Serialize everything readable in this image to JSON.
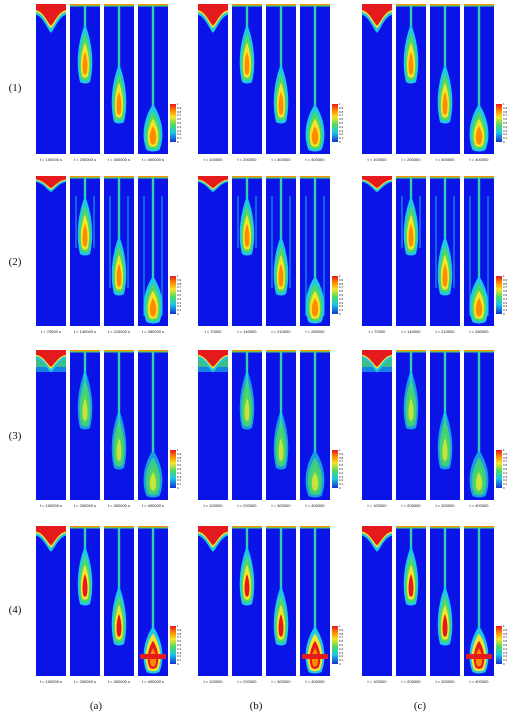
{
  "figure": {
    "row_labels": [
      "(1)",
      "(2)",
      "(3)",
      "(4)"
    ],
    "column_labels": [
      "(a)",
      "(b)",
      "(c)"
    ],
    "colorbar_ticks": [
      "1",
      "0.9",
      "0.8",
      "0.7",
      "0.6",
      "0.5",
      "0.4",
      "0.3",
      "0.2",
      "0.1",
      "0"
    ],
    "time_labels": {
      "r1": {
        "a": [
          "t = 100000 s",
          "t = 200000 s",
          "t = 300000 s",
          "t = 400000 s"
        ],
        "b": [
          "t = 100000",
          "t = 200000",
          "t = 300000",
          "t = 400000"
        ],
        "c": [
          "t = 100000",
          "t = 200000",
          "t = 300000",
          "t = 400000"
        ]
      },
      "r2": {
        "a": [
          "t = 70000 s",
          "t = 140000 s",
          "t = 210000 s",
          "t = 280000 s"
        ],
        "b": [
          "t = 70000",
          "t = 140000",
          "t = 210000",
          "t = 280000"
        ],
        "c": [
          "t = 70000",
          "t = 140000",
          "t = 210000",
          "t = 280000"
        ]
      },
      "r3": {
        "a": [
          "t = 100000 s",
          "t = 200000 s",
          "t = 300000 s",
          "t = 400000 s"
        ],
        "b": [
          "t = 100000",
          "t = 200000",
          "t = 300000",
          "t = 400000"
        ],
        "c": [
          "t = 100000",
          "t = 200000",
          "t = 300000",
          "t = 400000"
        ]
      },
      "r4": {
        "a": [
          "t = 100000 s",
          "t = 200000 s",
          "t = 300000 s",
          "t = 400000 s"
        ],
        "b": [
          "t = 100000",
          "t = 200000",
          "t = 300000",
          "t = 400000"
        ],
        "c": [
          "t = 100000",
          "t = 200000",
          "t = 300000",
          "t = 400000"
        ]
      }
    },
    "colors": {
      "background": "#0A14E6",
      "cyan": "#1EC8E6",
      "green": "#4CD964",
      "yellow": "#F5E52A",
      "orange": "#FF8C00",
      "red": "#E41A1C"
    }
  }
}
